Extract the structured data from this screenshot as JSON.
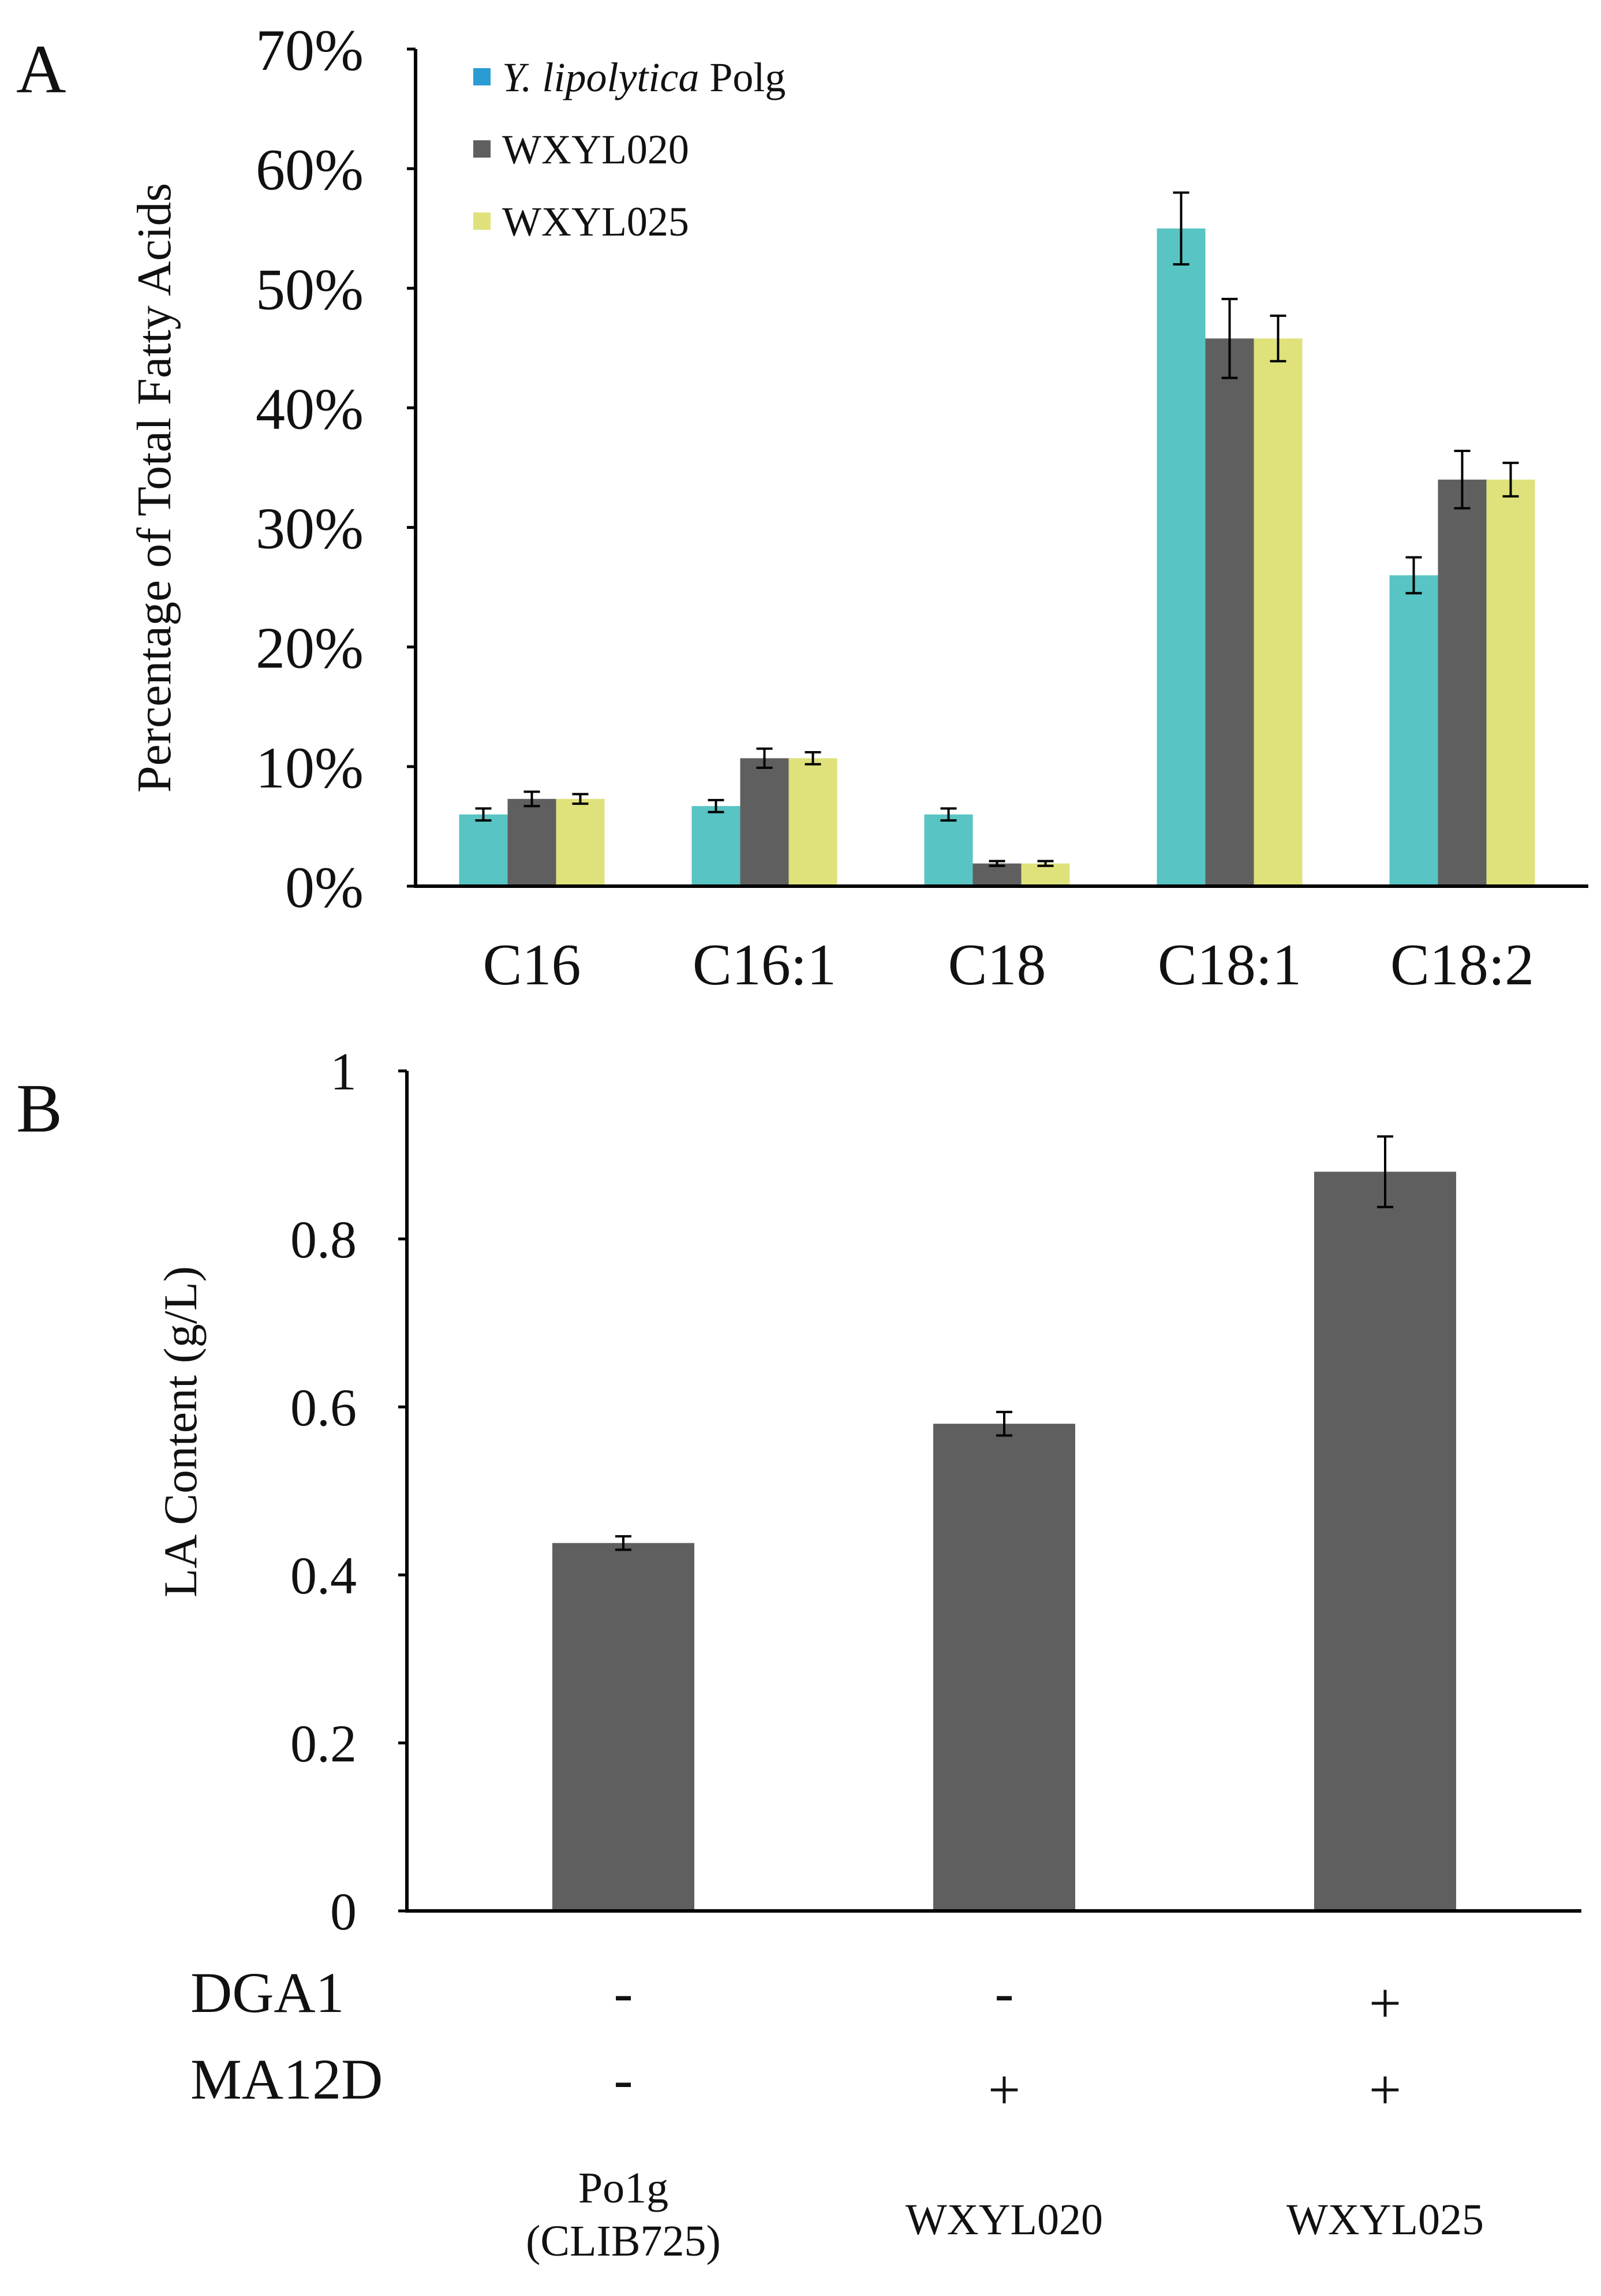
{
  "panels": {
    "a": {
      "letter": "A"
    },
    "b": {
      "letter": "B"
    }
  },
  "colors": {
    "teal": "#58c4c3",
    "gray": "#5f5f5f",
    "yellow": "#dfe27b",
    "legend_blue": "#2b9bd3",
    "axis": "#000000"
  },
  "chart_data": [
    {
      "type": "bar",
      "id": "panel-a",
      "title": "",
      "xlabel": "",
      "ylabel": "Percentage of Total Fatty Acids",
      "ylim": [
        0,
        70
      ],
      "yticks": [
        0,
        10,
        20,
        30,
        40,
        50,
        60,
        70
      ],
      "ytick_labels": [
        "0%",
        "10%",
        "20%",
        "30%",
        "40%",
        "50%",
        "60%",
        "70%"
      ],
      "categories": [
        "C16",
        "C16:1",
        "C18",
        "C18:1",
        "C18:2"
      ],
      "legend": {
        "placement": "top-left",
        "entries": [
          {
            "italic": "Y. lipolytica",
            "rest": " Polg",
            "name": "Y. lipolytica Polg"
          },
          {
            "italic": "",
            "rest": "WXYL020",
            "name": "WXYL020"
          },
          {
            "italic": "",
            "rest": "WXYL025",
            "name": "WXYL025"
          }
        ]
      },
      "series": [
        {
          "name": "Y. lipolytica Polg",
          "values": [
            6.0,
            6.7,
            6.0,
            55.0,
            26.0
          ],
          "errors": [
            0.5,
            0.5,
            0.5,
            3.0,
            1.5
          ]
        },
        {
          "name": "WXYL020",
          "values": [
            7.3,
            10.7,
            1.9,
            45.8,
            34.0
          ],
          "errors": [
            0.6,
            0.8,
            0.2,
            3.3,
            2.4
          ]
        },
        {
          "name": "WXYL025",
          "values": [
            7.3,
            10.7,
            1.9,
            45.8,
            34.0
          ],
          "errors": [
            0.4,
            0.5,
            0.2,
            1.9,
            1.4
          ]
        }
      ],
      "grid": false
    },
    {
      "type": "bar",
      "id": "panel-b",
      "title": "",
      "xlabel": "",
      "ylabel": "LA Content (g/L)",
      "ylim": [
        0,
        1
      ],
      "yticks": [
        0,
        0.2,
        0.4,
        0.6,
        0.8,
        1
      ],
      "ytick_labels": [
        "0",
        "0.2",
        "0.4",
        "0.6",
        "0.8",
        "1"
      ],
      "categories": [
        "Po1g (CLIB725)",
        "WXYL020",
        "WXYL025"
      ],
      "category_lines": [
        [
          "Po1g",
          "(CLIB725)"
        ],
        [
          "WXYL020"
        ],
        [
          "WXYL025"
        ]
      ],
      "values": [
        0.438,
        0.58,
        0.88
      ],
      "errors": [
        0.008,
        0.014,
        0.042
      ],
      "genotype_rows": [
        {
          "label": "DGA1",
          "signs": [
            "-",
            "-",
            "+"
          ]
        },
        {
          "label": "MA12D",
          "signs": [
            "-",
            "+",
            "+"
          ]
        }
      ],
      "grid": false
    }
  ]
}
